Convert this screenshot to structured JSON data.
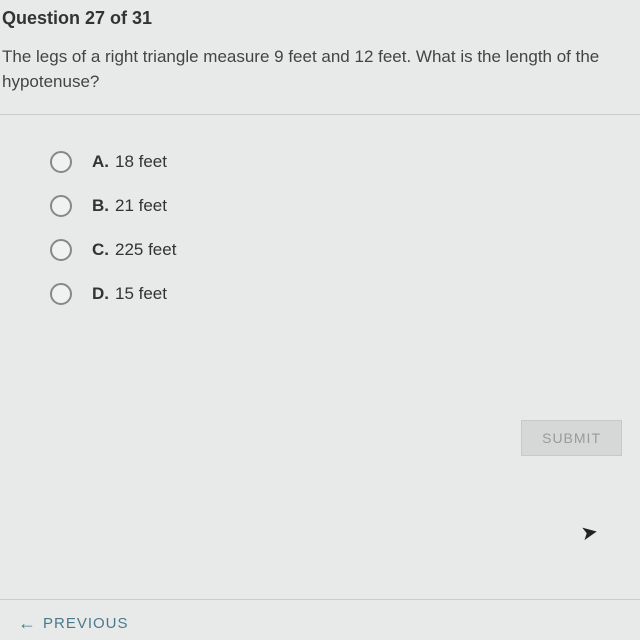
{
  "question": {
    "header": "Question 27 of 31",
    "text": "The legs of a right triangle measure 9 feet and 12 feet. What is the length of the hypotenuse?"
  },
  "options": [
    {
      "letter": "A.",
      "text": "18 feet"
    },
    {
      "letter": "B.",
      "text": "21 feet"
    },
    {
      "letter": "C.",
      "text": "225 feet"
    },
    {
      "letter": "D.",
      "text": "15 feet"
    }
  ],
  "buttons": {
    "submit": "SUBMIT",
    "previous": "PREVIOUS"
  },
  "colors": {
    "background": "#e8eaea",
    "text": "#3a3a3a",
    "border": "#ccc",
    "radio_border": "#888",
    "submit_bg": "#d6d8d8",
    "submit_text": "#9a9a9a",
    "previous_text": "#4a7a8a"
  },
  "typography": {
    "header_fontsize": 18,
    "body_fontsize": 17,
    "button_fontsize": 14
  }
}
